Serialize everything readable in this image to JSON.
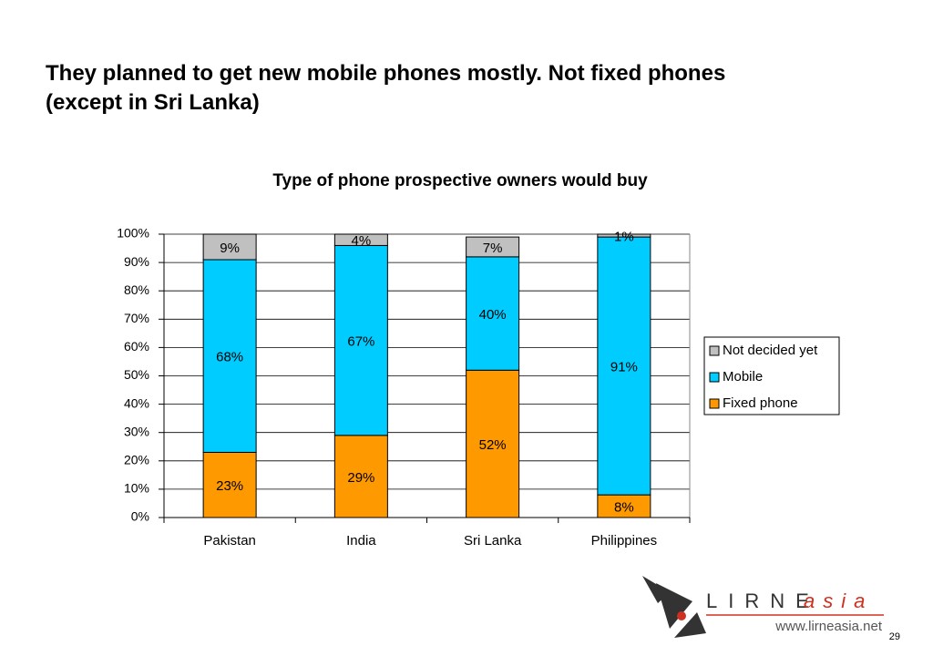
{
  "slide": {
    "title_line1": "They planned to get new mobile phones mostly. Not fixed phones",
    "title_line2": "(except in Sri Lanka)",
    "logo_left": "LIRNE",
    "logo_right": "asia",
    "url": "www.lirneasia.net",
    "page_number": "29"
  },
  "chart_data": {
    "type": "stacked_bar",
    "title": "Type of phone prospective owners would buy",
    "categories": [
      "Pakistan",
      "India",
      "Sri Lanka",
      "Philippines"
    ],
    "series": [
      {
        "name": "Fixed phone",
        "color": "#ff9900",
        "values": [
          23,
          29,
          52,
          8
        ],
        "value_labels": [
          "23%",
          "29%",
          "52%",
          "8%"
        ]
      },
      {
        "name": "Mobile",
        "color": "#00ccff",
        "values": [
          68,
          67,
          40,
          91
        ],
        "value_labels": [
          "68%",
          "67%",
          "40%",
          "91%"
        ]
      },
      {
        "name": "Not decided yet",
        "color": "#c0c0c0",
        "values": [
          9,
          4,
          7,
          1
        ],
        "value_labels": [
          "9%",
          "4%",
          "7%",
          "1%"
        ]
      }
    ],
    "ylim": [
      0,
      100
    ],
    "yticks": [
      {
        "value": 0,
        "label": "0%"
      },
      {
        "value": 10,
        "label": "10%"
      },
      {
        "value": 20,
        "label": "20%"
      },
      {
        "value": 30,
        "label": "30%"
      },
      {
        "value": 40,
        "label": "40%"
      },
      {
        "value": 50,
        "label": "50%"
      },
      {
        "value": 60,
        "label": "60%"
      },
      {
        "value": 70,
        "label": "70%"
      },
      {
        "value": 80,
        "label": "80%"
      },
      {
        "value": 90,
        "label": "90%"
      },
      {
        "value": 100,
        "label": "100%"
      }
    ],
    "grid": true,
    "legend": "right"
  }
}
